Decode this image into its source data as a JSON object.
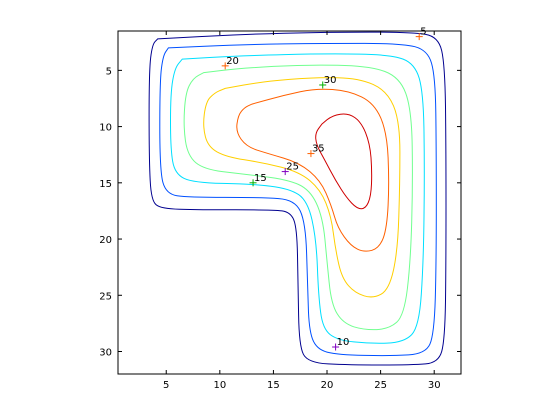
{
  "chart_data": {
    "type": "contour",
    "title": "",
    "xlabel": "",
    "ylabel": "",
    "xlim": [
      0.5,
      32.5
    ],
    "ylim": [
      32,
      1.5
    ],
    "y_reversed": true,
    "box": true,
    "grid": false,
    "xticks": [
      5,
      10,
      15,
      20,
      25,
      30
    ],
    "yticks": [
      5,
      10,
      15,
      20,
      25,
      30
    ],
    "levels": [
      {
        "level": 5,
        "color": "#00008f"
      },
      {
        "level": 10,
        "color": "#0050ff"
      },
      {
        "level": 15,
        "color": "#00dfff"
      },
      {
        "level": 20,
        "color": "#70ff8f"
      },
      {
        "level": 25,
        "color": "#ffcf00"
      },
      {
        "level": 30,
        "color": "#ff6000"
      },
      {
        "level": 35,
        "color": "#cf0000"
      }
    ],
    "contours": [
      {
        "level": 5,
        "points": [
          [
            4.2,
            2.2
          ],
          [
            12,
            1.8
          ],
          [
            20,
            1.6
          ],
          [
            28,
            1.6
          ],
          [
            30.4,
            2.0
          ],
          [
            31.0,
            4.5
          ],
          [
            31.1,
            12
          ],
          [
            31.1,
            22
          ],
          [
            31.0,
            29
          ],
          [
            30.4,
            31.0
          ],
          [
            28,
            31.2
          ],
          [
            22,
            31.2
          ],
          [
            18.2,
            31.0
          ],
          [
            17.4,
            29.5
          ],
          [
            17.3,
            24
          ],
          [
            17.2,
            19
          ],
          [
            16.6,
            17.6
          ],
          [
            15,
            17.4
          ],
          [
            8,
            17.4
          ],
          [
            4.5,
            17.3
          ],
          [
            3.6,
            16.6
          ],
          [
            3.4,
            13
          ],
          [
            3.4,
            5
          ],
          [
            3.7,
            2.7
          ],
          [
            4.2,
            2.2
          ]
        ]
      },
      {
        "level": 10,
        "points": [
          [
            5.2,
            3.0
          ],
          [
            12,
            2.7
          ],
          [
            20,
            2.6
          ],
          [
            27,
            2.6
          ],
          [
            29.4,
            3.2
          ],
          [
            30.1,
            5.5
          ],
          [
            30.2,
            12
          ],
          [
            30.2,
            22
          ],
          [
            30.0,
            28.5
          ],
          [
            29.2,
            30.2
          ],
          [
            26,
            30.4
          ],
          [
            21,
            30.3
          ],
          [
            19.0,
            29.8
          ],
          [
            18.3,
            28
          ],
          [
            18.2,
            24
          ],
          [
            18.0,
            18.5
          ],
          [
            17.0,
            16.5
          ],
          [
            14,
            16.3
          ],
          [
            7,
            16.3
          ],
          [
            5.0,
            16.0
          ],
          [
            4.4,
            14
          ],
          [
            4.4,
            6
          ],
          [
            4.7,
            3.7
          ],
          [
            5.2,
            3.0
          ]
        ]
      },
      {
        "level": 15,
        "points": [
          [
            6.5,
            4.0
          ],
          [
            12,
            3.7
          ],
          [
            20,
            3.5
          ],
          [
            26,
            3.6
          ],
          [
            28.2,
            4.4
          ],
          [
            29.0,
            7
          ],
          [
            29.1,
            14
          ],
          [
            29.0,
            22
          ],
          [
            28.6,
            27.8
          ],
          [
            27.2,
            29.2
          ],
          [
            24,
            29.3
          ],
          [
            21,
            29.0
          ],
          [
            19.6,
            28
          ],
          [
            19.2,
            25
          ],
          [
            19.0,
            20
          ],
          [
            18.2,
            16.6
          ],
          [
            16.5,
            15.5
          ],
          [
            13,
            15.1
          ],
          [
            7.5,
            15.0
          ],
          [
            5.8,
            14.2
          ],
          [
            5.4,
            12
          ],
          [
            5.4,
            7
          ],
          [
            5.8,
            4.8
          ],
          [
            6.5,
            4.0
          ]
        ]
      },
      {
        "level": 20,
        "points": [
          [
            8.5,
            5.2
          ],
          [
            12,
            4.8
          ],
          [
            18,
            4.5
          ],
          [
            24,
            4.6
          ],
          [
            26.8,
            5.6
          ],
          [
            27.9,
            8.5
          ],
          [
            28.0,
            15
          ],
          [
            27.8,
            22
          ],
          [
            27.2,
            26.8
          ],
          [
            25.8,
            28.0
          ],
          [
            23.5,
            28.1
          ],
          [
            21.5,
            27.5
          ],
          [
            20.4,
            25.8
          ],
          [
            20.0,
            22
          ],
          [
            19.6,
            18
          ],
          [
            18.4,
            15.6
          ],
          [
            16.3,
            14.7
          ],
          [
            12,
            14.2
          ],
          [
            8.5,
            13.8
          ],
          [
            7.0,
            12.6
          ],
          [
            6.6,
            10
          ],
          [
            6.8,
            7
          ],
          [
            7.5,
            5.7
          ],
          [
            8.5,
            5.2
          ]
        ]
      },
      {
        "level": 25,
        "points": [
          [
            10.5,
            6.6
          ],
          [
            14,
            6.0
          ],
          [
            19,
            5.6
          ],
          [
            23,
            5.7
          ],
          [
            25.6,
            6.8
          ],
          [
            26.8,
            9.5
          ],
          [
            26.8,
            15
          ],
          [
            26.6,
            21
          ],
          [
            25.8,
            24.5
          ],
          [
            24.3,
            25.3
          ],
          [
            22.6,
            24.8
          ],
          [
            21.4,
            23.5
          ],
          [
            20.8,
            21
          ],
          [
            20.4,
            18
          ],
          [
            19.4,
            15.6
          ],
          [
            17.4,
            14.0
          ],
          [
            14,
            13.2
          ],
          [
            10.6,
            12.7
          ],
          [
            8.9,
            11.8
          ],
          [
            8.4,
            10
          ],
          [
            8.7,
            7.8
          ],
          [
            9.5,
            7.0
          ],
          [
            10.5,
            6.6
          ]
        ]
      },
      {
        "level": 30,
        "points": [
          [
            13,
            8.0
          ],
          [
            16,
            7.2
          ],
          [
            19,
            6.6
          ],
          [
            22,
            6.8
          ],
          [
            24.4,
            7.9
          ],
          [
            25.6,
            10.5
          ],
          [
            25.8,
            15
          ],
          [
            25.6,
            19
          ],
          [
            24.9,
            20.8
          ],
          [
            23.5,
            21.2
          ],
          [
            22.2,
            20.6
          ],
          [
            21.0,
            19
          ],
          [
            20.4,
            17
          ],
          [
            19.4,
            14.8
          ],
          [
            17.4,
            13.2
          ],
          [
            14.5,
            12.4
          ],
          [
            12.5,
            11.8
          ],
          [
            11.5,
            10.5
          ],
          [
            11.7,
            9.0
          ],
          [
            12.3,
            8.3
          ],
          [
            13,
            8.0
          ]
        ]
      },
      {
        "level": 35,
        "points": [
          [
            19.5,
            9.8
          ],
          [
            20.5,
            9.0
          ],
          [
            22,
            8.8
          ],
          [
            23.2,
            9.6
          ],
          [
            24.0,
            11.5
          ],
          [
            24.2,
            14
          ],
          [
            24.1,
            16.2
          ],
          [
            23.6,
            17.3
          ],
          [
            22.8,
            17.3
          ],
          [
            21.8,
            16.3
          ],
          [
            20.8,
            14.8
          ],
          [
            19.8,
            13.0
          ],
          [
            19.0,
            11.6
          ],
          [
            18.9,
            10.6
          ],
          [
            19.5,
            9.8
          ]
        ]
      }
    ],
    "labels": [
      {
        "text": "5",
        "x": 28.6,
        "y": 2.0,
        "color": "#ff6000"
      },
      {
        "text": "20",
        "x": 10.5,
        "y": 4.6,
        "color": "#ff6000"
      },
      {
        "text": "30",
        "x": 19.6,
        "y": 6.3,
        "color": "#00b000"
      },
      {
        "text": "35",
        "x": 18.5,
        "y": 12.4,
        "color": "#ff6000"
      },
      {
        "text": "25",
        "x": 16.1,
        "y": 14.0,
        "color": "#8000c0"
      },
      {
        "text": "15",
        "x": 13.1,
        "y": 15.0,
        "color": "#00b000"
      },
      {
        "text": "10",
        "x": 20.8,
        "y": 29.6,
        "color": "#8000c0"
      }
    ]
  }
}
